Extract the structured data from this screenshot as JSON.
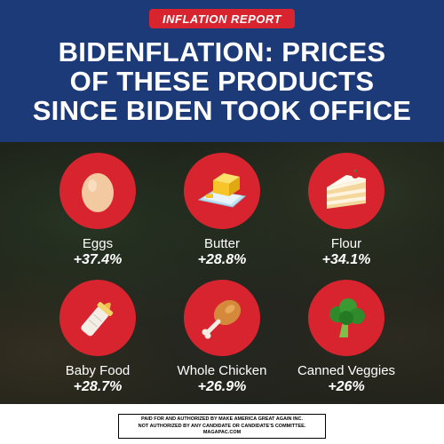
{
  "header": {
    "tag": "INFLATION REPORT",
    "title_lines": [
      "BIDENFLATION: PRICES",
      "OF THESE PRODUCTS",
      "SINCE BIDEN TOOK OFFICE"
    ]
  },
  "items": [
    {
      "label": "Eggs",
      "change": "+37.4%",
      "icon": "egg-icon"
    },
    {
      "label": "Butter",
      "change": "+28.8%",
      "icon": "butter-icon"
    },
    {
      "label": "Flour",
      "change": "+34.1%",
      "icon": "cake-slice-icon"
    },
    {
      "label": "Baby Food",
      "change": "+28.7%",
      "icon": "baby-bottle-icon"
    },
    {
      "label": "Whole Chicken",
      "change": "+26.9%",
      "icon": "chicken-leg-icon"
    },
    {
      "label": "Canned Veggies",
      "change": "+26%",
      "icon": "broccoli-icon"
    }
  ],
  "footer": {
    "lines": [
      "PAID FOR AND AUTHORIZED BY MAKE AMERICA GREAT AGAIN INC.",
      "NOT AUTHORIZED BY ANY CANDIDATE OR CANDIDATE'S COMMITTEE.",
      "MAGAPAC.COM"
    ]
  },
  "colors": {
    "header_bg": "#1d3a78",
    "accent_red": "#d8242f",
    "text_white": "#ffffff"
  }
}
